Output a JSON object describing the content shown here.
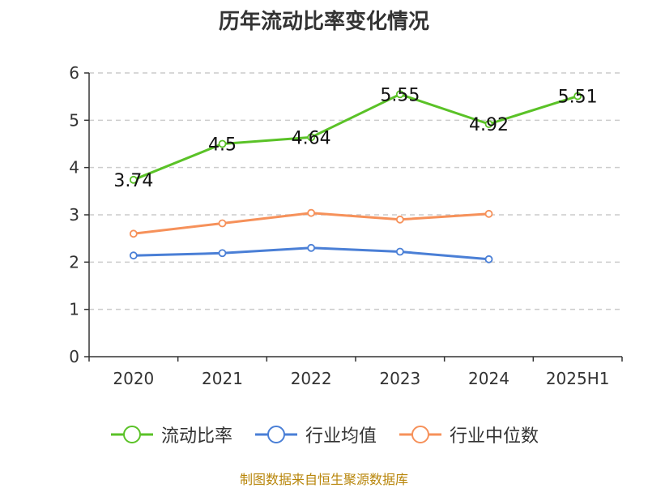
{
  "footer": {
    "source": "制图数据来自恒生聚源数据库"
  },
  "colors": {
    "source_text": "#b8860b",
    "axis": "#333333",
    "grid": "#cccccc"
  },
  "chart_data": {
    "type": "line",
    "title": "历年流动比率变化情况",
    "xlabel": "",
    "ylabel": "",
    "categories": [
      "2020",
      "2021",
      "2022",
      "2023",
      "2024",
      "2025H1"
    ],
    "ylim": [
      0,
      6
    ],
    "yticks": [
      0,
      1,
      2,
      3,
      4,
      5,
      6
    ],
    "grid": true,
    "legend_position": "bottom",
    "series": [
      {
        "name": "流动比率",
        "color": "#5ac227",
        "values": [
          3.74,
          4.5,
          4.64,
          5.55,
          4.92,
          5.51
        ],
        "labels": [
          "3.74",
          "4.5",
          "4.64",
          "5.55",
          "4.92",
          "5.51"
        ],
        "show_labels": true
      },
      {
        "name": "行业均值",
        "color": "#4a7fd6",
        "values": [
          2.14,
          2.19,
          2.3,
          2.22,
          2.06,
          null
        ],
        "show_labels": false
      },
      {
        "name": "行业中位数",
        "color": "#f6915a",
        "values": [
          2.6,
          2.82,
          3.04,
          2.9,
          3.02,
          null
        ],
        "show_labels": false
      }
    ]
  }
}
